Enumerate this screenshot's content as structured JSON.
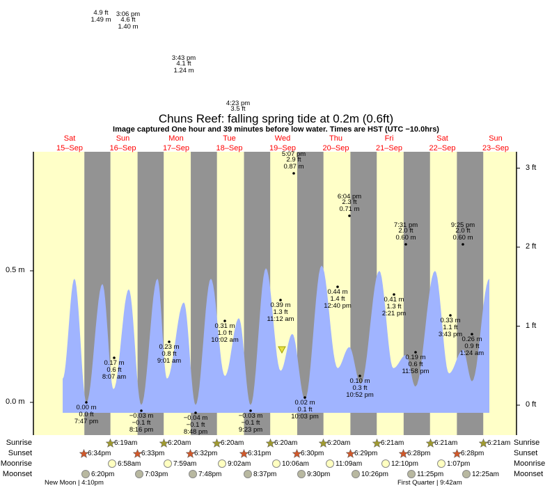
{
  "chart_data": {
    "type": "area",
    "title": "Chuns Reef: falling  spring tide at 0.2m (0.6ft)",
    "subtitle": "Image captured One hour and 39 minutes before low water. Times are HST (UTC −10.0hrs)",
    "left_axis": {
      "unit": "m",
      "ticks": [
        "0.0 m",
        "0.5 m"
      ],
      "tick_values": [
        0,
        0.5
      ]
    },
    "right_axis": {
      "unit": "ft",
      "ticks": [
        "0 ft",
        "1 ft",
        "2 ft",
        "3 ft"
      ],
      "tick_values": [
        0,
        1,
        2,
        3
      ]
    },
    "days": [
      {
        "dow": "Sat",
        "date": "15–Sep"
      },
      {
        "dow": "Sun",
        "date": "16–Sep"
      },
      {
        "dow": "Mon",
        "date": "17–Sep"
      },
      {
        "dow": "Tue",
        "date": "18–Sep"
      },
      {
        "dow": "Wed",
        "date": "19–Sep"
      },
      {
        "dow": "Thu",
        "date": "20–Sep"
      },
      {
        "dow": "Fri",
        "date": "21–Sep"
      },
      {
        "dow": "Sat",
        "date": "22–Sep"
      },
      {
        "dow": "Sun",
        "date": "23–Sep"
      }
    ],
    "curve": {
      "x_unit": "hours since Sat 15-Sep 00:00",
      "x": [
        8.8,
        14.1,
        19.5,
        26.7,
        31.7,
        38.6,
        44.2,
        51.5,
        55.8,
        63.4,
        68.7,
        75.6,
        81.9,
        88.2,
        93.5,
        100.4,
        107.0,
        112.3,
        118.0,
        125.5,
        132.7,
        138.0,
        143.1,
        151.5,
        157.8,
        163.5,
        167.8,
        176.6,
        182.9,
        189.2,
        193.3,
        201.1
      ],
      "height_m": [
        0.09,
        0.47,
        0.0,
        0.45,
        0.05,
        0.43,
        -0.01,
        0.47,
        0.09,
        0.38,
        -0.01,
        0.47,
        0.1,
        0.32,
        -0.01,
        0.51,
        0.12,
        0.26,
        0.01,
        0.52,
        0.13,
        0.21,
        0.07,
        0.5,
        0.13,
        0.18,
        0.06,
        0.5,
        0.11,
        0.2,
        0.08,
        0.47
      ]
    },
    "now_marker": {
      "hours": 107.6,
      "height_m": 0.2
    },
    "tide_labels": [
      {
        "kind": "low",
        "m": "0.00 m",
        "ft": "0.0 ft",
        "time": "7:47 pm"
      },
      {
        "kind": "low",
        "m": "0.17 m",
        "ft": "0.6 ft",
        "time": "8:07 am"
      },
      {
        "kind": "low",
        "m": "−0.03 m",
        "ft": "−0.1 ft",
        "time": "8:16 pm"
      },
      {
        "kind": "low",
        "m": "0.23 m",
        "ft": "0.8 ft",
        "time": "9:01 am"
      },
      {
        "kind": "low",
        "m": "−0.04 m",
        "ft": "−0.1 ft",
        "time": "8:48 pm"
      },
      {
        "kind": "low",
        "m": "0.31 m",
        "ft": "1.0 ft",
        "time": "10:02 am"
      },
      {
        "kind": "low",
        "m": "−0.03 m",
        "ft": "−0.1 ft",
        "time": "9:23 pm"
      },
      {
        "kind": "low",
        "m": "0.39 m",
        "ft": "1.3 ft",
        "time": "11:12 am"
      },
      {
        "kind": "low",
        "m": "0.02 m",
        "ft": "0.1 ft",
        "time": "10:03 pm"
      },
      {
        "kind": "low",
        "m": "0.44 m",
        "ft": "1.4 ft",
        "time": "12:40 pm"
      },
      {
        "kind": "low",
        "m": "0.10 m",
        "ft": "0.3 ft",
        "time": "10:52 pm"
      },
      {
        "kind": "low",
        "m": "0.41 m",
        "ft": "1.3 ft",
        "time": "2:21 pm"
      },
      {
        "kind": "low",
        "m": "0.19 m",
        "ft": "0.6 ft",
        "time": "11:58 pm"
      },
      {
        "kind": "low",
        "m": "0.33 m",
        "ft": "1.1 ft",
        "time": "3:43 pm"
      },
      {
        "kind": "low",
        "m": "0.26 m",
        "ft": "0.9 ft",
        "time": "1:24 am"
      },
      {
        "kind": "high",
        "time": "5:07 pm",
        "ft": "2.9 ft",
        "m": "0.87 m"
      },
      {
        "kind": "high",
        "time": "6:04 pm",
        "ft": "2.3 ft",
        "m": "0.71 m"
      },
      {
        "kind": "high",
        "time": "7:31 pm",
        "ft": "2.0 ft",
        "m": "0.60 m"
      },
      {
        "kind": "high",
        "time": "9:25 pm",
        "ft": "2.0 ft",
        "m": "0.60 m"
      },
      {
        "kind": "high",
        "time": "",
        "ft": "4.9 ft",
        "m": "1.49 m"
      },
      {
        "kind": "high",
        "time": "3:06 pm",
        "ft": "4.6 ft",
        "m": "1.40 m"
      },
      {
        "kind": "high",
        "time": "3:43 pm",
        "ft": "4.1 ft",
        "m": "1.24 m"
      },
      {
        "kind": "high",
        "time": "4:23 pm",
        "ft": "3.5 ft",
        "m": ""
      }
    ]
  },
  "almanac": {
    "row_labels": {
      "sunrise": "Sunrise",
      "sunset": "Sunset",
      "moonrise": "Moonrise",
      "moonset": "Moonset"
    },
    "sunrise": [
      "6:19am",
      "6:20am",
      "6:20am",
      "6:20am",
      "6:20am",
      "6:21am",
      "6:21am",
      "6:21am"
    ],
    "sunset": [
      "6:34pm",
      "6:33pm",
      "6:32pm",
      "6:31pm",
      "6:30pm",
      "6:29pm",
      "6:28pm",
      "6:28pm"
    ],
    "moonrise": [
      "6:58am",
      "7:59am",
      "9:02am",
      "10:06am",
      "11:09am",
      "12:10pm",
      "1:07pm"
    ],
    "moonset": [
      "6:20pm",
      "7:03pm",
      "7:48pm",
      "8:37pm",
      "9:30pm",
      "10:26pm",
      "11:25pm",
      "12:25am"
    ],
    "phases": [
      {
        "name": "New Moon",
        "time": "4:10pm"
      },
      {
        "name": "First Quarter",
        "time": "9:42am"
      }
    ]
  },
  "colors": {
    "day": "#ffffc8",
    "night": "#939393",
    "water": "#a0b4ff",
    "day_label": "#ff0000",
    "sun_rise": "#a09a30",
    "sun_set": "#d0582a",
    "moonrise": "#ffffc0",
    "moonset": "#b8b8a0"
  }
}
